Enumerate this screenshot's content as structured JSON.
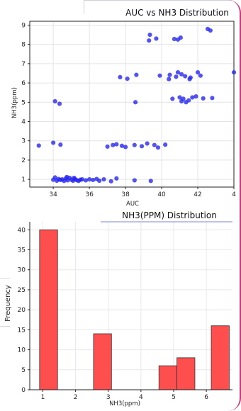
{
  "chart_data": [
    {
      "type": "scatter",
      "title": "AUC vs NH3 Distribution",
      "xlabel": "AUC",
      "ylabel": "NH3(ppm)",
      "xlim": [
        32.7,
        44
      ],
      "ylim": [
        0.6,
        9.2
      ],
      "xticks": [
        "34",
        "36",
        "38",
        "40",
        "42",
        "4"
      ],
      "yticks": [
        "1",
        "2",
        "3",
        "4",
        "5",
        "6",
        "7",
        "8",
        "9"
      ],
      "grid": true,
      "point_color": "#2222ee",
      "points": [
        [
          33.2,
          2.75
        ],
        [
          34.0,
          2.9
        ],
        [
          34.4,
          2.8
        ],
        [
          34.1,
          5.05
        ],
        [
          34.35,
          4.92
        ],
        [
          34.0,
          0.98
        ],
        [
          34.1,
          1.1
        ],
        [
          34.2,
          0.93
        ],
        [
          34.3,
          1.02
        ],
        [
          34.4,
          0.97
        ],
        [
          34.5,
          1.0
        ],
        [
          34.6,
          0.92
        ],
        [
          34.7,
          1.05
        ],
        [
          34.8,
          0.95
        ],
        [
          34.9,
          1.08
        ],
        [
          35.0,
          0.98
        ],
        [
          35.1,
          0.93
        ],
        [
          35.2,
          1.02
        ],
        [
          35.3,
          0.96
        ],
        [
          35.4,
          0.92
        ],
        [
          35.5,
          0.98
        ],
        [
          35.6,
          1.0
        ],
        [
          35.8,
          0.95
        ],
        [
          36.0,
          1.0
        ],
        [
          36.2,
          0.97
        ],
        [
          36.4,
          1.02
        ],
        [
          36.8,
          1.0
        ],
        [
          37.2,
          0.9
        ],
        [
          37.5,
          1.05
        ],
        [
          38.5,
          0.95
        ],
        [
          39.4,
          0.92
        ],
        [
          34.75,
          1.12
        ],
        [
          35.15,
          1.08
        ],
        [
          36.55,
          0.93
        ],
        [
          37.0,
          2.7
        ],
        [
          37.3,
          2.78
        ],
        [
          37.5,
          2.82
        ],
        [
          37.8,
          2.74
        ],
        [
          38.0,
          2.68
        ],
        [
          38.5,
          2.78
        ],
        [
          38.9,
          2.72
        ],
        [
          39.2,
          2.86
        ],
        [
          39.6,
          2.78
        ],
        [
          39.8,
          2.65
        ],
        [
          40.2,
          2.8
        ],
        [
          37.7,
          6.3
        ],
        [
          38.1,
          6.22
        ],
        [
          38.6,
          6.42
        ],
        [
          38.55,
          5.0
        ],
        [
          39.9,
          6.38
        ],
        [
          40.4,
          6.2
        ],
        [
          40.45,
          6.42
        ],
        [
          40.8,
          6.32
        ],
        [
          40.9,
          6.55
        ],
        [
          41.1,
          6.45
        ],
        [
          41.3,
          6.35
        ],
        [
          41.6,
          6.28
        ],
        [
          41.55,
          6.2
        ],
        [
          42.0,
          6.55
        ],
        [
          42.15,
          6.38
        ],
        [
          44.0,
          6.55
        ],
        [
          40.6,
          5.18
        ],
        [
          41.0,
          5.25
        ],
        [
          41.1,
          5.05
        ],
        [
          41.2,
          5.18
        ],
        [
          41.35,
          5.0
        ],
        [
          41.5,
          5.1
        ],
        [
          41.7,
          5.25
        ],
        [
          41.9,
          5.3
        ],
        [
          42.3,
          5.2
        ],
        [
          42.8,
          5.22
        ],
        [
          39.3,
          8.2
        ],
        [
          39.35,
          8.5
        ],
        [
          39.7,
          8.3
        ],
        [
          40.7,
          8.28
        ],
        [
          40.9,
          8.25
        ],
        [
          41.05,
          8.35
        ],
        [
          42.55,
          8.8
        ],
        [
          42.7,
          8.72
        ]
      ]
    },
    {
      "type": "bar",
      "title": "NH3(PPM) Distribution",
      "xlabel": "NH3(ppm)",
      "ylabel": "Frequency",
      "xlim": [
        0.6,
        6.8
      ],
      "ylim": [
        0,
        42
      ],
      "xticks": [
        "1",
        "2",
        "3",
        "4",
        "5",
        "6"
      ],
      "yticks": [
        "0",
        "5",
        "10",
        "15",
        "20",
        "25",
        "30",
        "35",
        "40"
      ],
      "grid": true,
      "bar_color": "#ff4444",
      "bins": [
        {
          "start": 0.9,
          "end": 1.45,
          "value": 40
        },
        {
          "start": 2.55,
          "end": 3.1,
          "value": 14
        },
        {
          "start": 4.55,
          "end": 5.1,
          "value": 6
        },
        {
          "start": 5.1,
          "end": 5.65,
          "value": 8
        },
        {
          "start": 6.15,
          "end": 6.7,
          "value": 16
        }
      ]
    }
  ]
}
